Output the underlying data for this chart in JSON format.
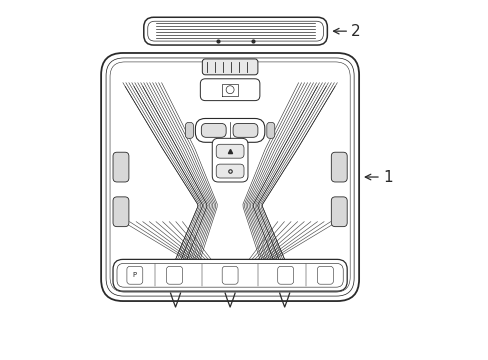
{
  "background_color": "#ffffff",
  "line_color": "#2a2a2a",
  "label_1": "1",
  "label_2": "2",
  "label_fontsize": 11,
  "figsize": [
    4.89,
    3.6
  ],
  "dpi": 100
}
